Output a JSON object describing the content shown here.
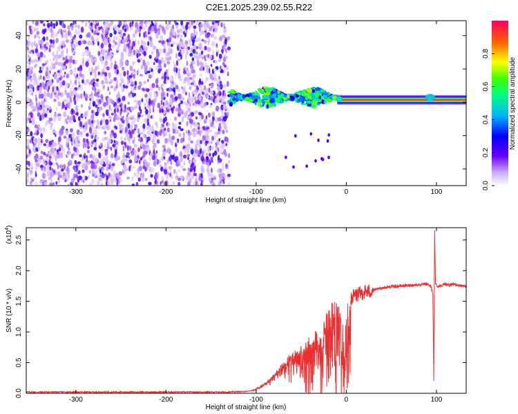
{
  "title": "C2E1.2025.239.02.55.R22",
  "colors": {
    "snr_line": "#e83030",
    "axis": "#000000",
    "background": "#ffffff"
  },
  "chart_data": [
    {
      "type": "heatmap",
      "name": "spectrogram",
      "xlabel": "Height of straight line (km)",
      "ylabel": "Frequency (Hz)",
      "xlim": [
        -355,
        133
      ],
      "ylim": [
        -50,
        49
      ],
      "xticks": [
        -300,
        -200,
        -100,
        0,
        100
      ],
      "yticks": [
        -40,
        -20,
        0,
        20,
        40
      ],
      "xtick_labels": [
        "-300",
        "-200",
        "-100",
        "0",
        "100"
      ],
      "ytick_labels": [
        "-40",
        "-20",
        "0",
        "20",
        "40"
      ],
      "colorbar": {
        "label": "Normalized spectral amplitude",
        "range": [
          0.0,
          1.0
        ],
        "ticks": [
          0.0,
          0.2,
          0.4,
          0.6,
          0.8
        ],
        "tick_labels": [
          "0.0",
          "0.2",
          "0.4",
          "0.6",
          "0.8"
        ]
      },
      "features": [
        {
          "description": "noise",
          "x_range": [
            -355,
            -130
          ],
          "f_range": [
            -50,
            49
          ],
          "amplitude": 0.15
        },
        {
          "description": "scattered signal",
          "x_range": [
            -130,
            -10
          ],
          "f_center": 3,
          "f_spread": 6,
          "amplitude": 0.5
        },
        {
          "description": "narrow carrier",
          "x_range": [
            -10,
            133
          ],
          "f_center": 1.5,
          "f_spread": 1.5,
          "amplitude": 0.95
        }
      ]
    },
    {
      "type": "line",
      "name": "snr",
      "xlabel": "Height of straight line (km)",
      "ylabel": "SNR (10 * v/v)",
      "exponent_label": "(x10",
      "exponent": "4",
      "exponent_close": ")",
      "xlim": [
        -355,
        133
      ],
      "ylim": [
        0,
        2.7
      ],
      "xticks": [
        -300,
        -200,
        -100,
        0,
        100
      ],
      "yticks": [
        0.0,
        0.5,
        1.0,
        1.5,
        2.0,
        2.5
      ],
      "xtick_labels": [
        "-300",
        "-200",
        "-100",
        "0",
        "100"
      ],
      "ytick_labels": [
        "0.0",
        "0.5",
        "1.0",
        "1.5",
        "2.0",
        "2.5"
      ],
      "series": [
        {
          "name": "SNR",
          "x": [
            -355,
            -300,
            -200,
            -130,
            -110,
            -100,
            -90,
            -80,
            -70,
            -60,
            -50,
            -40,
            -30,
            -25,
            -20,
            -15,
            -10,
            -5,
            0,
            5,
            10,
            15,
            20,
            25,
            30,
            40,
            50,
            60,
            70,
            80,
            90,
            94,
            96,
            97,
            98,
            99,
            100,
            102,
            105,
            110,
            115,
            120,
            125,
            133
          ],
          "y": [
            0.02,
            0.02,
            0.02,
            0.02,
            0.03,
            0.06,
            0.15,
            0.3,
            0.45,
            0.6,
            0.7,
            0.8,
            0.95,
            1.1,
            1.3,
            1.45,
            1.5,
            1.1,
            1.3,
            1.55,
            1.6,
            1.62,
            1.65,
            1.66,
            1.68,
            1.72,
            1.74,
            1.75,
            1.76,
            1.77,
            1.78,
            1.74,
            1.6,
            0.22,
            2.65,
            1.8,
            1.76,
            1.74,
            1.76,
            1.78,
            1.76,
            1.78,
            1.76,
            1.74
          ]
        }
      ]
    }
  ]
}
